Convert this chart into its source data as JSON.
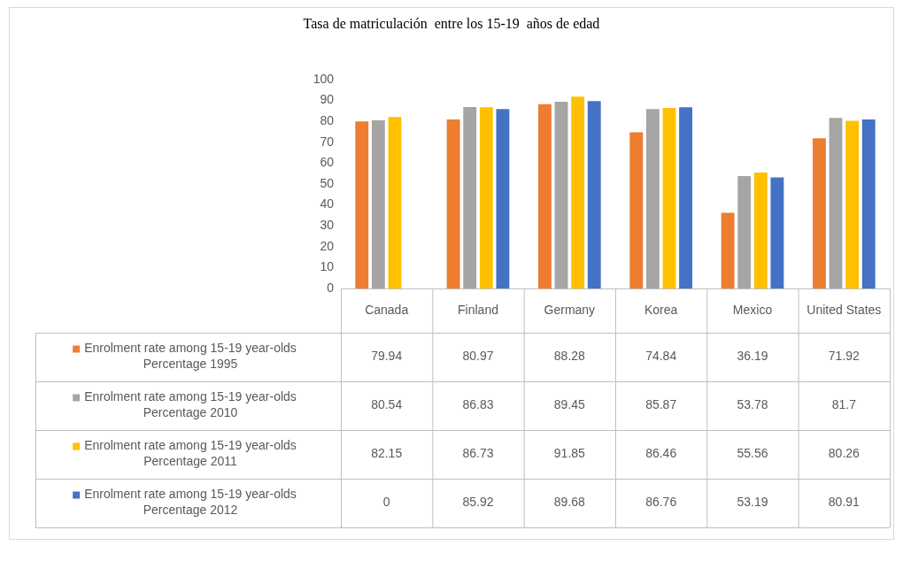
{
  "chart_data": {
    "type": "bar",
    "title": "Tasa de matriculación  entre los 15-19  años de edad",
    "categories": [
      "Canada",
      "Finland",
      "Germany",
      "Korea",
      "Mexico",
      "United States"
    ],
    "series": [
      {
        "name": "Enrolment rate among 15-19 year-olds Percentage 1995",
        "color": "#ed7d31",
        "values": [
          79.94,
          80.97,
          88.28,
          74.84,
          36.19,
          71.92
        ]
      },
      {
        "name": "Enrolment rate among 15-19 year-olds Percentage 2010",
        "color": "#a5a5a5",
        "values": [
          80.54,
          86.83,
          89.45,
          85.87,
          53.78,
          81.7
        ]
      },
      {
        "name": "Enrolment rate among 15-19 year-olds Percentage 2011",
        "color": "#ffc000",
        "values": [
          82.15,
          86.73,
          91.85,
          86.46,
          55.56,
          80.26
        ]
      },
      {
        "name": "Enrolment rate among 15-19 year-olds Percentage 2012",
        "color": "#4472c4",
        "values": [
          0,
          85.92,
          89.68,
          86.76,
          53.19,
          80.91
        ]
      }
    ],
    "ylim": [
      0,
      100
    ],
    "yticks": [
      0,
      10,
      20,
      30,
      40,
      50,
      60,
      70,
      80,
      90,
      100
    ],
    "grid": false,
    "legend": "bottom",
    "data_labels": true
  }
}
